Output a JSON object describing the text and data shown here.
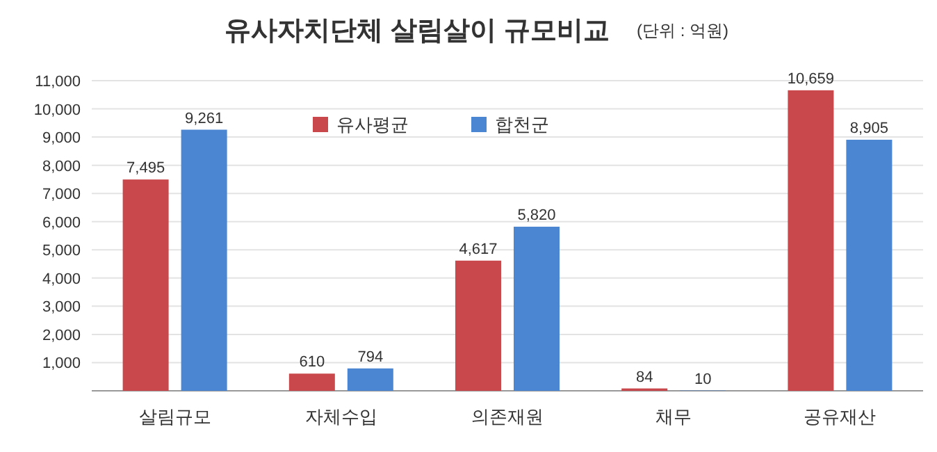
{
  "chart_data": {
    "type": "bar",
    "title": "유사자치단체 살림살이 규모비교",
    "subtitle": "(단위 : 억원)",
    "categories": [
      "살림규모",
      "자체수입",
      "의존재원",
      "채무",
      "공유재산"
    ],
    "series": [
      {
        "name": "유사평균",
        "color": "#c9484b",
        "values": [
          7495,
          610,
          4617,
          84,
          10659
        ],
        "value_labels": [
          "7,495",
          "610",
          "4,617",
          "84",
          "10,659"
        ]
      },
      {
        "name": "합천군",
        "color": "#4a86d1",
        "values": [
          9261,
          794,
          5820,
          10,
          8905
        ],
        "value_labels": [
          "9,261",
          "794",
          "5,820",
          "10",
          "8,905"
        ]
      }
    ],
    "ylim": [
      0,
      11000
    ],
    "yticks": [
      {
        "value": 0,
        "label": null
      },
      {
        "value": 1000,
        "label": "1,000"
      },
      {
        "value": 2000,
        "label": "2,000"
      },
      {
        "value": 3000,
        "label": "3,000"
      },
      {
        "value": 4000,
        "label": "4,000"
      },
      {
        "value": 5000,
        "label": "5,000"
      },
      {
        "value": 6000,
        "label": "6,000"
      },
      {
        "value": 7000,
        "label": "7,000"
      },
      {
        "value": 8000,
        "label": "8,000"
      },
      {
        "value": 9000,
        "label": "9,000"
      },
      {
        "value": 10000,
        "label": "10,000"
      },
      {
        "value": 11000,
        "label": "11,000"
      }
    ],
    "grid": "y",
    "legend": "top"
  }
}
